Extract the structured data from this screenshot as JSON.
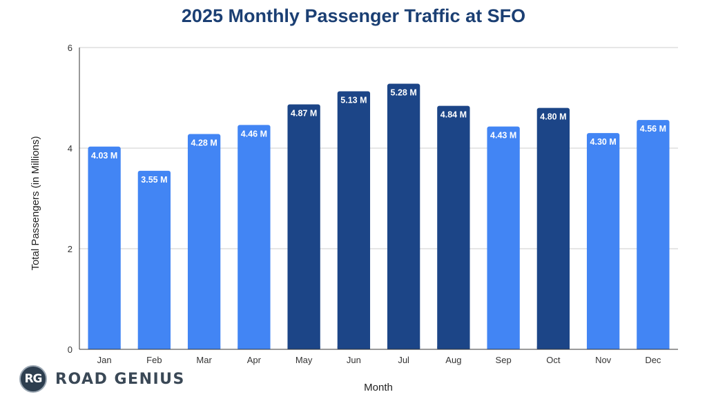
{
  "chart_data": {
    "type": "bar",
    "title": "2025 Monthly Passenger Traffic at SFO",
    "xlabel": "Month",
    "ylabel": "Total Passengers (in Millions)",
    "ylim": [
      0,
      6
    ],
    "yticks": [
      0,
      2,
      4,
      6
    ],
    "grid": true,
    "categories": [
      "Jan",
      "Feb",
      "Mar",
      "Apr",
      "May",
      "Jun",
      "Jul",
      "Aug",
      "Sep",
      "Oct",
      "Nov",
      "Dec"
    ],
    "values": [
      4.03,
      3.55,
      4.28,
      4.46,
      4.87,
      5.13,
      5.28,
      4.84,
      4.43,
      4.8,
      4.3,
      4.56
    ],
    "labels": [
      "4.03 M",
      "3.55 M",
      "4.28 M",
      "4.46 M",
      "4.87 M",
      "5.13 M",
      "5.28 M",
      "4.84 M",
      "4.43 M",
      "4.80 M",
      "4.30 M",
      "4.56 M"
    ],
    "bar_colors": [
      "#4285f4",
      "#4285f4",
      "#4285f4",
      "#4285f4",
      "#1c4587",
      "#1c4587",
      "#1c4587",
      "#1c4587",
      "#4285f4",
      "#1c4587",
      "#4285f4",
      "#4285f4"
    ]
  },
  "logo": {
    "badge_text": "RG",
    "brand_text": "ROAD GENIUS"
  }
}
